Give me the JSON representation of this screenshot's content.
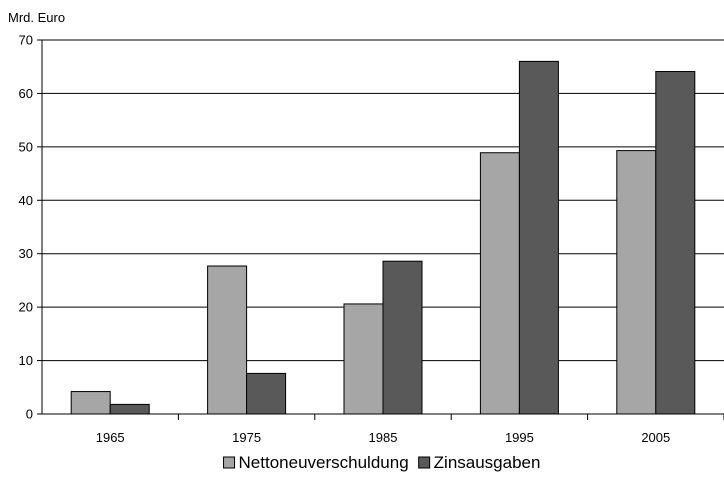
{
  "chart_data": {
    "type": "bar",
    "title": "",
    "ylabel": "Mrd. Euro",
    "xlabel": "",
    "categories": [
      "1965",
      "1975",
      "1985",
      "1995",
      "2005"
    ],
    "series": [
      {
        "name": "Nettoneuverschuldung",
        "values": [
          4.2,
          27.7,
          20.6,
          48.9,
          49.3
        ],
        "color": "#a6a6a6"
      },
      {
        "name": "Zinsausgaben",
        "values": [
          1.8,
          7.6,
          28.6,
          66.0,
          64.1
        ],
        "color": "#595959"
      }
    ],
    "ylim": [
      0,
      70
    ],
    "yticks": [
      "0",
      "10",
      "20",
      "30",
      "40",
      "50",
      "60",
      "70"
    ],
    "grid": true,
    "legend_position": "bottom"
  }
}
